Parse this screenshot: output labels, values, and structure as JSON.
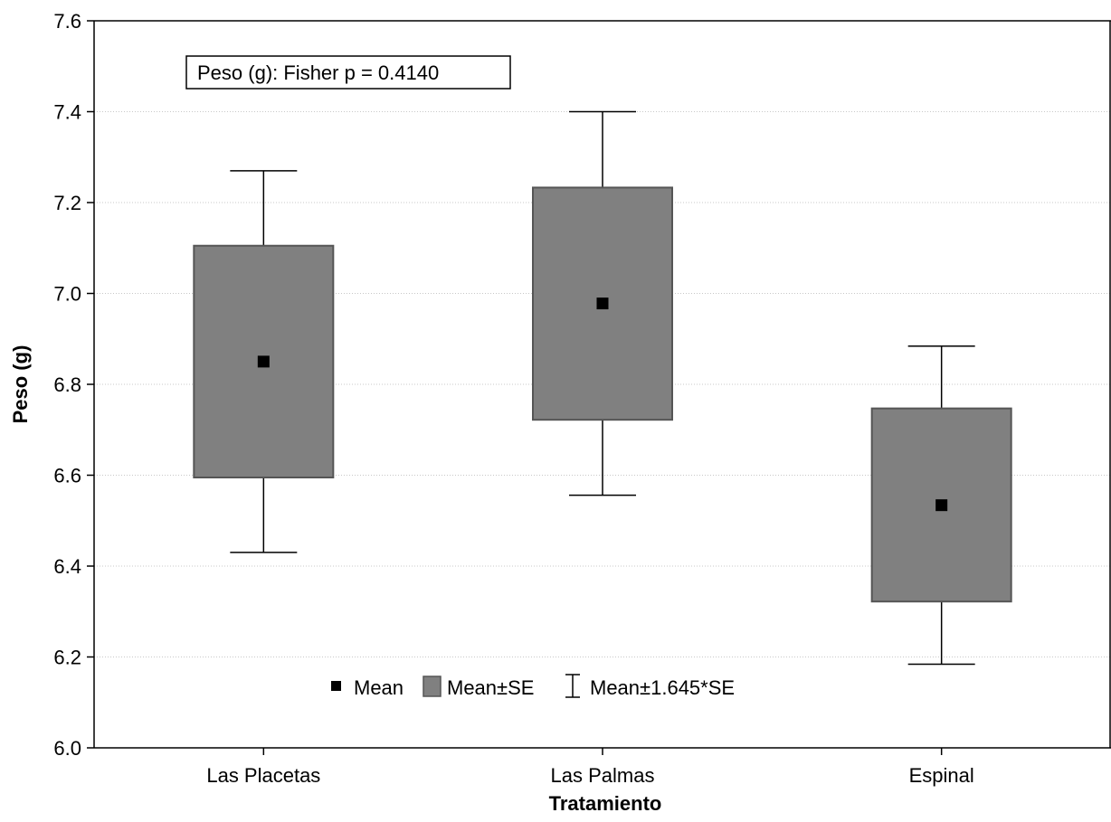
{
  "chart_data": {
    "type": "box",
    "annotation": "Peso (g):  Fisher  p = 0.4140",
    "xlabel": "Tratamiento",
    "ylabel": "Peso (g)",
    "ylim": [
      6.0,
      7.6
    ],
    "yticks": [
      "6.0",
      "6.2",
      "6.4",
      "6.6",
      "6.8",
      "7.0",
      "7.2",
      "7.4",
      "7.6"
    ],
    "grid": true,
    "legend_placement": "bottom-center",
    "legend": {
      "mean": "Mean",
      "se": "Mean±SE",
      "ci": "Mean±1.645*SE"
    },
    "categories": [
      "Las Placetas",
      "Las Palmas",
      "Espinal"
    ],
    "groups": [
      {
        "name": "Las Placetas",
        "mean": 6.85,
        "se_low": 6.595,
        "se_high": 7.105,
        "whisker_low": 6.43,
        "whisker_high": 7.27
      },
      {
        "name": "Las Palmas",
        "mean": 6.978,
        "se_low": 6.722,
        "se_high": 7.233,
        "whisker_low": 6.556,
        "whisker_high": 7.4
      },
      {
        "name": "Espinal",
        "mean": 6.534,
        "se_low": 6.322,
        "se_high": 6.747,
        "whisker_low": 6.184,
        "whisker_high": 6.884
      }
    ],
    "colors": {
      "box_fill": "#808080",
      "box_stroke": "#555555",
      "mean_marker": "#000000",
      "grid": "#c8c8c8"
    }
  }
}
